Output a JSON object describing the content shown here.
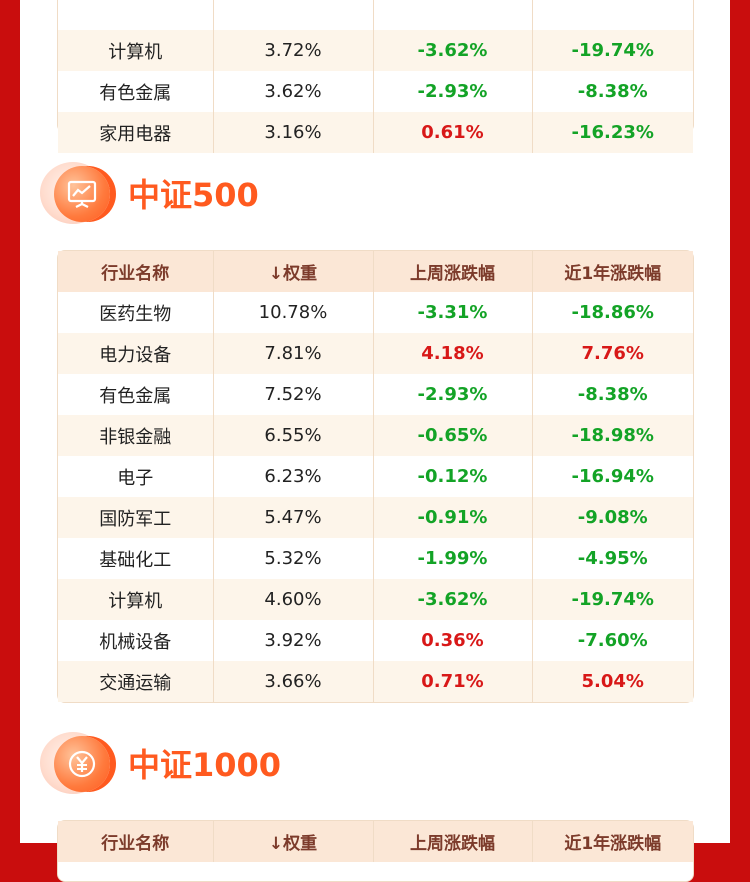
{
  "top_table": {
    "rows": [
      {
        "name": "计算机",
        "weight": "3.72%",
        "weekly": "-3.62%",
        "weekly_dir": "neg",
        "yearly": "-19.74%",
        "yearly_dir": "neg"
      },
      {
        "name": "有色金属",
        "weight": "3.62%",
        "weekly": "-2.93%",
        "weekly_dir": "neg",
        "yearly": "-8.38%",
        "yearly_dir": "neg"
      },
      {
        "name": "家用电器",
        "weight": "3.16%",
        "weekly": "0.61%",
        "weekly_dir": "pos",
        "yearly": "-16.23%",
        "yearly_dir": "neg"
      }
    ]
  },
  "csi500": {
    "title": "中证500",
    "icon": "chart-board-icon",
    "headers": [
      "行业名称",
      "↓权重",
      "上周涨跌幅",
      "近1年涨跌幅"
    ],
    "rows": [
      {
        "name": "医药生物",
        "weight": "10.78%",
        "weekly": "-3.31%",
        "weekly_dir": "neg",
        "yearly": "-18.86%",
        "yearly_dir": "neg"
      },
      {
        "name": "电力设备",
        "weight": "7.81%",
        "weekly": "4.18%",
        "weekly_dir": "pos",
        "yearly": "7.76%",
        "yearly_dir": "pos"
      },
      {
        "name": "有色金属",
        "weight": "7.52%",
        "weekly": "-2.93%",
        "weekly_dir": "neg",
        "yearly": "-8.38%",
        "yearly_dir": "neg"
      },
      {
        "name": "非银金融",
        "weight": "6.55%",
        "weekly": "-0.65%",
        "weekly_dir": "neg",
        "yearly": "-18.98%",
        "yearly_dir": "neg"
      },
      {
        "name": "电子",
        "weight": "6.23%",
        "weekly": "-0.12%",
        "weekly_dir": "neg",
        "yearly": "-16.94%",
        "yearly_dir": "neg"
      },
      {
        "name": "国防军工",
        "weight": "5.47%",
        "weekly": "-0.91%",
        "weekly_dir": "neg",
        "yearly": "-9.08%",
        "yearly_dir": "neg"
      },
      {
        "name": "基础化工",
        "weight": "5.32%",
        "weekly": "-1.99%",
        "weekly_dir": "neg",
        "yearly": "-4.95%",
        "yearly_dir": "neg"
      },
      {
        "name": "计算机",
        "weight": "4.60%",
        "weekly": "-3.62%",
        "weekly_dir": "neg",
        "yearly": "-19.74%",
        "yearly_dir": "neg"
      },
      {
        "name": "机械设备",
        "weight": "3.92%",
        "weekly": "0.36%",
        "weekly_dir": "pos",
        "yearly": "-7.60%",
        "yearly_dir": "neg"
      },
      {
        "name": "交通运输",
        "weight": "3.66%",
        "weekly": "0.71%",
        "weekly_dir": "pos",
        "yearly": "5.04%",
        "yearly_dir": "pos"
      }
    ]
  },
  "csi1000": {
    "title": "中证1000",
    "icon": "yuan-coin-icon",
    "headers": [
      "行业名称",
      "↓权重",
      "上周涨跌幅",
      "近1年涨跌幅"
    ]
  },
  "colors": {
    "background": "#c90d0d",
    "accent": "#ff5a1f",
    "header_bg": "#fbe7d6",
    "header_text": "#7c3b2b",
    "negative": "#13a326",
    "positive": "#d81818"
  }
}
